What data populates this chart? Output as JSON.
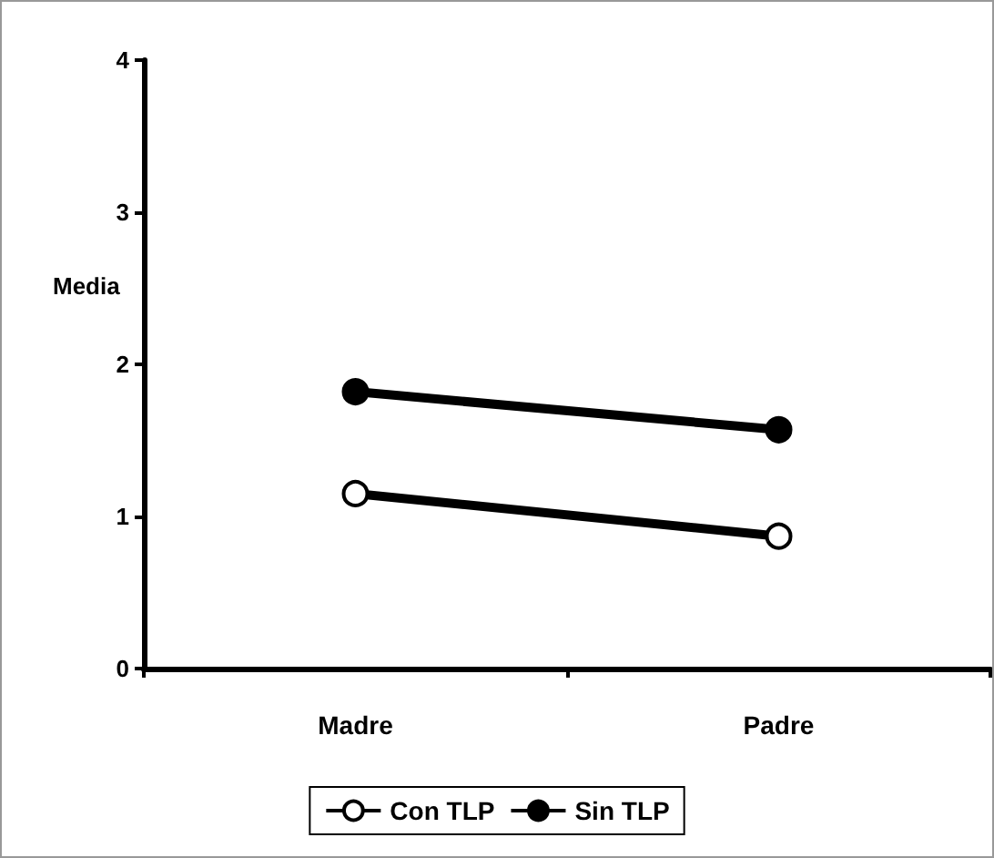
{
  "chart_data": {
    "type": "line",
    "ylabel": "Media",
    "categories": [
      "Madre",
      "Padre"
    ],
    "series": [
      {
        "name": "Con TLP",
        "color": "#000000",
        "values": [
          1.15,
          0.87
        ]
      },
      {
        "name": "Sin TLP",
        "color": "#000000",
        "values": [
          1.82,
          1.57
        ]
      }
    ],
    "ylim": [
      0,
      4
    ],
    "yticks": [
      0,
      1,
      2,
      3,
      4
    ],
    "grid": false,
    "legend": "bottom",
    "marker": "circle",
    "line_style": "solid"
  }
}
